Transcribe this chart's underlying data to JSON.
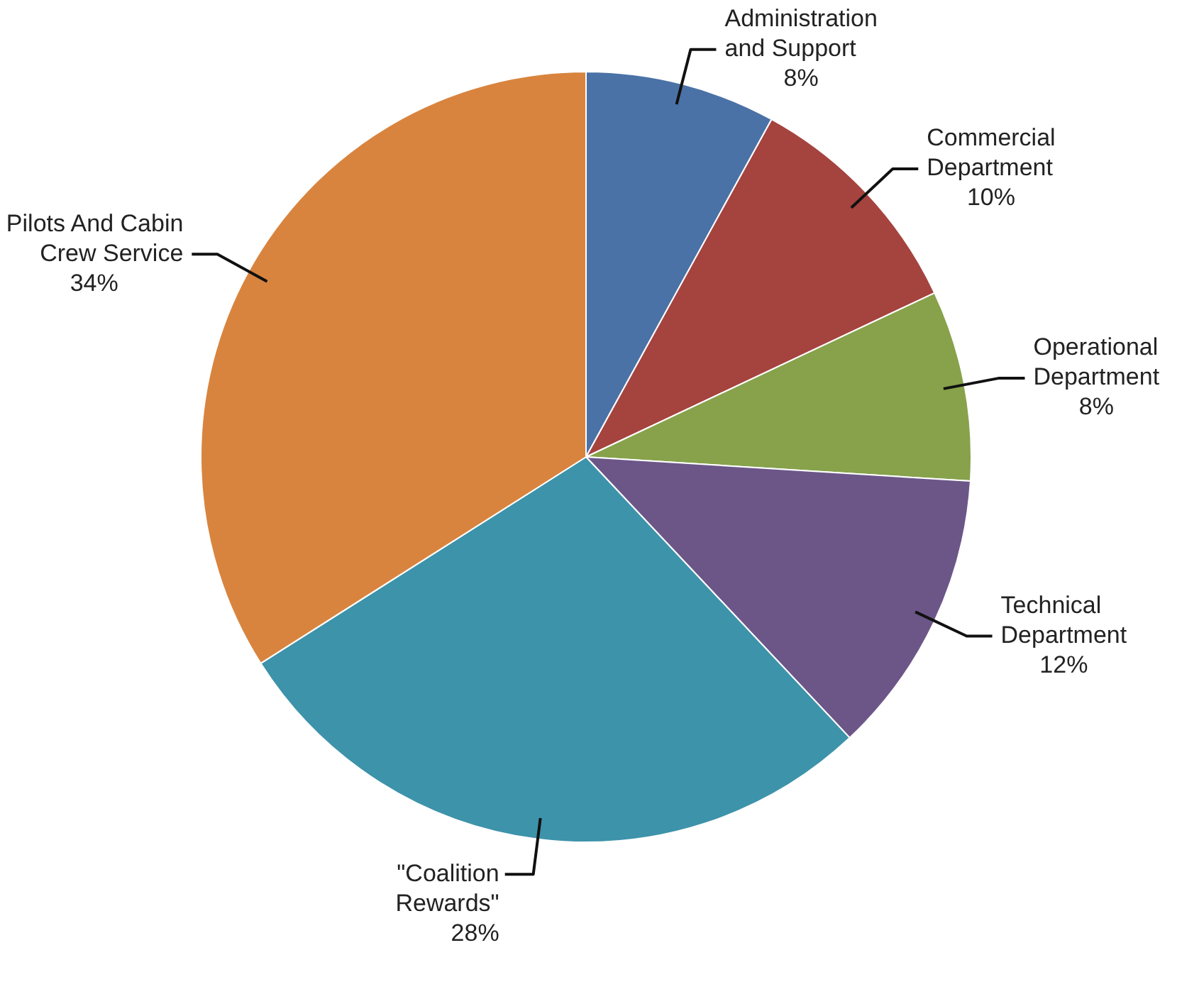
{
  "chart_data": {
    "type": "pie",
    "categories": [
      "Administration and Support",
      "Commercial Department",
      "Operational Department",
      "Technical Department",
      "\"Coalition Rewards\"",
      "Pilots And Cabin Crew Service"
    ],
    "values": [
      8,
      10,
      8,
      12,
      28,
      34
    ],
    "value_labels": [
      "8%",
      "10%",
      "8%",
      "12%",
      "28%",
      "34%"
    ],
    "colors": [
      "#4a72a6",
      "#a5433f",
      "#87a24b",
      "#6c5688",
      "#3d93aa",
      "#d8843f"
    ]
  }
}
